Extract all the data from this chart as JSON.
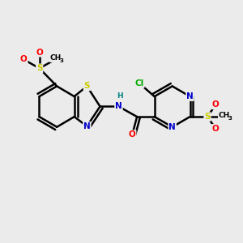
{
  "bg_color": "#ebebeb",
  "atom_colors": {
    "C": "#000000",
    "N": "#0000cc",
    "O": "#ff0000",
    "S": "#cccc00",
    "Cl": "#00aa00",
    "H": "#008080"
  },
  "bond_color": "#000000",
  "bond_width": 1.8,
  "figsize": [
    3.0,
    3.0
  ],
  "dpi": 100
}
